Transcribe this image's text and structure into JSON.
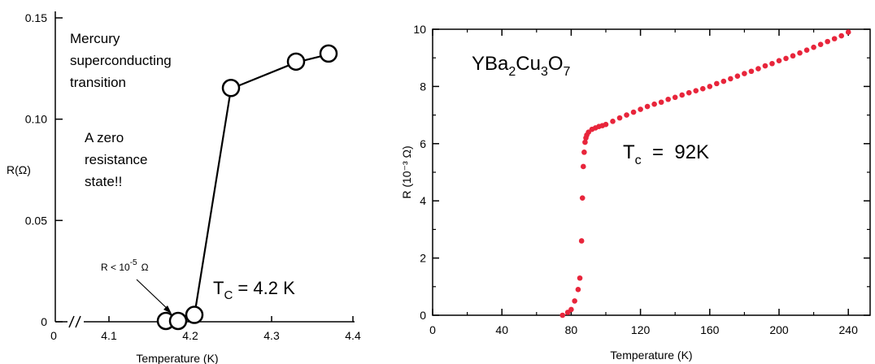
{
  "chart_data": [
    {
      "type": "scatter",
      "title": "",
      "xlabel": "Temperature (K)",
      "ylabel": "R(Ω)",
      "xlim": [
        4.0,
        4.4
      ],
      "ylim": [
        0,
        0.15
      ],
      "x_axis_break": true,
      "x_ticks": [
        "0",
        "4.1",
        "4.2",
        "4.3",
        "4.4"
      ],
      "y_ticks": [
        "0",
        "0.05",
        "0.10",
        "0.15"
      ],
      "series": [
        {
          "x": [
            4.17,
            4.185,
            4.205,
            4.25,
            4.33,
            4.37
          ],
          "y": [
            0,
            0,
            0.003,
            0.115,
            0.128,
            0.132
          ]
        }
      ],
      "annotations": {
        "caption": [
          "Mercury",
          "superconducting",
          "transition"
        ],
        "zero_state": [
          "A zero",
          "resistance",
          "state!!"
        ],
        "limit": {
          "base": "R < 10",
          "exp": "-5",
          "unit": "Ω"
        },
        "tc": {
          "base": "T",
          "sub": "C",
          "value": " = 4.2 K"
        }
      }
    },
    {
      "type": "scatter",
      "title": "",
      "xlabel": "Temperature (K)",
      "ylabel": "R (10⁻³ Ω)",
      "xlim": [
        0,
        260
      ],
      "ylim": [
        0,
        10
      ],
      "x_ticks": [
        "0",
        "40",
        "80",
        "120",
        "160",
        "200",
        "240"
      ],
      "y_ticks": [
        "0",
        "2",
        "4",
        "6",
        "8",
        "10"
      ],
      "marker_color": "#e8253b",
      "series": [
        {
          "x": [
            75,
            78,
            80,
            82,
            84,
            85,
            86,
            86.5,
            87,
            87.5,
            88,
            88.5,
            89,
            90,
            92,
            94,
            96,
            98,
            100,
            104,
            108,
            112,
            116,
            120,
            124,
            128,
            132,
            136,
            140,
            144,
            148,
            152,
            156,
            160,
            164,
            168,
            172,
            176,
            180,
            184,
            188,
            192,
            196,
            200,
            204,
            208,
            212,
            216,
            220,
            224,
            228,
            232,
            236,
            240
          ],
          "y": [
            0,
            0.1,
            0.2,
            0.5,
            0.9,
            1.3,
            2.6,
            4.1,
            5.2,
            5.7,
            6.05,
            6.2,
            6.3,
            6.4,
            6.5,
            6.55,
            6.6,
            6.63,
            6.67,
            6.78,
            6.9,
            7.0,
            7.1,
            7.2,
            7.3,
            7.38,
            7.45,
            7.55,
            7.62,
            7.7,
            7.78,
            7.85,
            7.92,
            8.0,
            8.1,
            8.18,
            8.27,
            8.36,
            8.45,
            8.53,
            8.62,
            8.72,
            8.8,
            8.9,
            8.98,
            9.07,
            9.17,
            9.27,
            9.37,
            9.47,
            9.57,
            9.67,
            9.77,
            9.9
          ]
        }
      ],
      "annotations": {
        "compound": [
          "YBa",
          "2",
          "Cu",
          "3",
          "O",
          "7"
        ],
        "tc": {
          "base": "T",
          "sub": "c",
          "value": "  =  92K"
        }
      }
    }
  ]
}
